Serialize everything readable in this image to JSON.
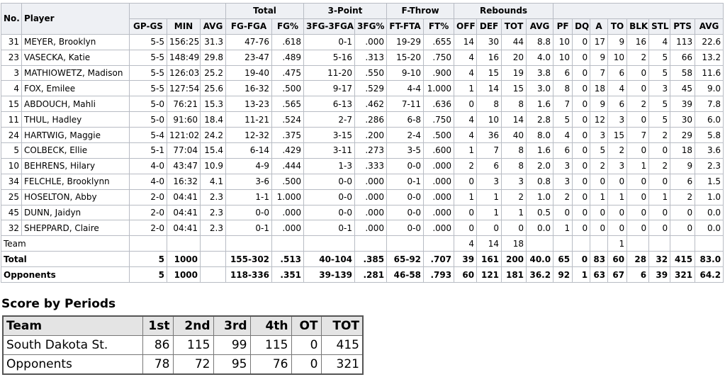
{
  "table": {
    "group_headers": [
      "Total",
      "3-Point",
      "F-Throw",
      "Rebounds"
    ],
    "headers": [
      "No.",
      "Player",
      "GP-GS",
      "MIN",
      "AVG",
      "FG-FGA",
      "FG%",
      "3FG-3FGA",
      "3FG%",
      "FT-FTA",
      "FT%",
      "OFF",
      "DEF",
      "TOT",
      "AVG",
      "PF",
      "DQ",
      "A",
      "TO",
      "BLK",
      "STL",
      "PTS",
      "AVG"
    ],
    "rows": [
      [
        "31",
        "MEYER, Brooklyn",
        "5-5",
        "156:25",
        "31.3",
        "47-76",
        ".618",
        "0-1",
        ".000",
        "19-29",
        ".655",
        "14",
        "30",
        "44",
        "8.8",
        "10",
        "0",
        "17",
        "9",
        "16",
        "4",
        "113",
        "22.6"
      ],
      [
        "23",
        "VASECKA, Katie",
        "5-5",
        "148:49",
        "29.8",
        "23-47",
        ".489",
        "5-16",
        ".313",
        "15-20",
        ".750",
        "4",
        "16",
        "20",
        "4.0",
        "10",
        "0",
        "9",
        "10",
        "2",
        "5",
        "66",
        "13.2"
      ],
      [
        "3",
        "MATHIOWETZ, Madison",
        "5-5",
        "126:03",
        "25.2",
        "19-40",
        ".475",
        "11-20",
        ".550",
        "9-10",
        ".900",
        "4",
        "15",
        "19",
        "3.8",
        "6",
        "0",
        "7",
        "6",
        "0",
        "5",
        "58",
        "11.6"
      ],
      [
        "4",
        "FOX, Emilee",
        "5-5",
        "127:54",
        "25.6",
        "16-32",
        ".500",
        "9-17",
        ".529",
        "4-4",
        "1.000",
        "1",
        "14",
        "15",
        "3.0",
        "8",
        "0",
        "18",
        "4",
        "0",
        "3",
        "45",
        "9.0"
      ],
      [
        "15",
        "ABDOUCH, Mahli",
        "5-0",
        "76:21",
        "15.3",
        "13-23",
        ".565",
        "6-13",
        ".462",
        "7-11",
        ".636",
        "0",
        "8",
        "8",
        "1.6",
        "7",
        "0",
        "9",
        "6",
        "2",
        "5",
        "39",
        "7.8"
      ],
      [
        "11",
        "THUL, Hadley",
        "5-0",
        "91:60",
        "18.4",
        "11-21",
        ".524",
        "2-7",
        ".286",
        "6-8",
        ".750",
        "4",
        "10",
        "14",
        "2.8",
        "5",
        "0",
        "12",
        "3",
        "0",
        "5",
        "30",
        "6.0"
      ],
      [
        "24",
        "HARTWIG, Maggie",
        "5-4",
        "121:02",
        "24.2",
        "12-32",
        ".375",
        "3-15",
        ".200",
        "2-4",
        ".500",
        "4",
        "36",
        "40",
        "8.0",
        "4",
        "0",
        "3",
        "15",
        "7",
        "2",
        "29",
        "5.8"
      ],
      [
        "5",
        "COLBECK, Ellie",
        "5-1",
        "77:04",
        "15.4",
        "6-14",
        ".429",
        "3-11",
        ".273",
        "3-5",
        ".600",
        "1",
        "7",
        "8",
        "1.6",
        "6",
        "0",
        "5",
        "2",
        "0",
        "0",
        "18",
        "3.6"
      ],
      [
        "10",
        "BEHRENS, Hilary",
        "4-0",
        "43:47",
        "10.9",
        "4-9",
        ".444",
        "1-3",
        ".333",
        "0-0",
        ".000",
        "2",
        "6",
        "8",
        "2.0",
        "3",
        "0",
        "2",
        "3",
        "1",
        "2",
        "9",
        "2.3"
      ],
      [
        "34",
        "FELCHLE, Brooklynn",
        "4-0",
        "16:32",
        "4.1",
        "3-6",
        ".500",
        "0-0",
        ".000",
        "0-1",
        ".000",
        "0",
        "3",
        "3",
        "0.8",
        "3",
        "0",
        "0",
        "0",
        "0",
        "0",
        "6",
        "1.5"
      ],
      [
        "25",
        "HOSELTON, Abby",
        "2-0",
        "04:41",
        "2.3",
        "1-1",
        "1.000",
        "0-0",
        ".000",
        "0-0",
        ".000",
        "1",
        "1",
        "2",
        "1.0",
        "2",
        "0",
        "1",
        "1",
        "0",
        "1",
        "2",
        "1.0"
      ],
      [
        "45",
        "DUNN, Jaidyn",
        "2-0",
        "04:41",
        "2.3",
        "0-0",
        ".000",
        "0-0",
        ".000",
        "0-0",
        ".000",
        "0",
        "1",
        "1",
        "0.5",
        "0",
        "0",
        "0",
        "0",
        "0",
        "0",
        "0",
        "0.0"
      ],
      [
        "32",
        "SHEPPARD, Claire",
        "2-0",
        "04:41",
        "2.3",
        "0-1",
        ".000",
        "0-1",
        ".000",
        "0-0",
        ".000",
        "0",
        "0",
        "0",
        "0.0",
        "1",
        "0",
        "0",
        "0",
        "0",
        "0",
        "0",
        "0.0"
      ]
    ],
    "summary_rows": [
      {
        "label": "Team",
        "cells": [
          null,
          null,
          null,
          null,
          null,
          null,
          null,
          null,
          null,
          "4",
          "14",
          "18",
          null,
          null,
          null,
          null,
          "1",
          null,
          null,
          null,
          null
        ]
      },
      {
        "label": "Total",
        "cells": [
          "5",
          "1000",
          null,
          "155-302",
          ".513",
          "40-104",
          ".385",
          "65-92",
          ".707",
          "39",
          "161",
          "200",
          "40.0",
          "65",
          "0",
          "83",
          "60",
          "28",
          "32",
          "415",
          "83.0"
        ]
      },
      {
        "label": "Opponents",
        "cells": [
          "5",
          "1000",
          null,
          "118-336",
          ".351",
          "39-139",
          ".281",
          "46-58",
          ".793",
          "60",
          "121",
          "181",
          "36.2",
          "92",
          "1",
          "63",
          "67",
          "6",
          "39",
          "321",
          "64.2"
        ]
      }
    ]
  },
  "periods": {
    "title": "Score by Periods",
    "headers": [
      "Team",
      "1st",
      "2nd",
      "3rd",
      "4th",
      "OT",
      "TOT"
    ],
    "rows": [
      [
        "South Dakota St.",
        "86",
        "115",
        "99",
        "115",
        "0",
        "415"
      ],
      [
        "Opponents",
        "78",
        "72",
        "95",
        "76",
        "0",
        "321"
      ]
    ]
  }
}
